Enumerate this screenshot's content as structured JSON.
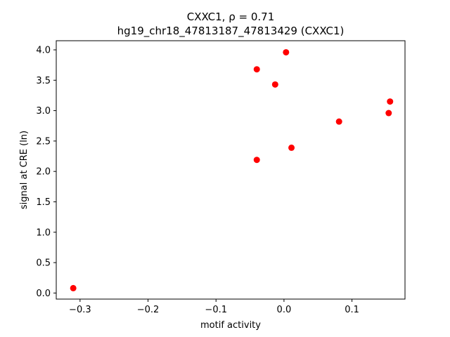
{
  "chart_data": {
    "type": "scatter",
    "title": "CXXC1, ρ = 0.71",
    "subtitle": "hg19_chr18_47813187_47813429 (CXXC1)",
    "xlabel": "motif activity",
    "ylabel": "signal at CRE (ln)",
    "xlim": [
      -0.335,
      0.178
    ],
    "ylim": [
      -0.1,
      4.15
    ],
    "x_ticks": [
      -0.3,
      -0.2,
      -0.1,
      0.0,
      0.1
    ],
    "x_tick_labels": [
      "−0.3",
      "−0.2",
      "−0.1",
      "0.0",
      "0.1"
    ],
    "y_ticks": [
      0.0,
      0.5,
      1.0,
      1.5,
      2.0,
      2.5,
      3.0,
      3.5,
      4.0
    ],
    "y_tick_labels": [
      "0.0",
      "0.5",
      "1.0",
      "1.5",
      "2.0",
      "2.5",
      "3.0",
      "3.5",
      "4.0"
    ],
    "grid": false,
    "marker_color": "#ff0000",
    "points": [
      {
        "x": -0.31,
        "y": 0.08
      },
      {
        "x": -0.04,
        "y": 2.19
      },
      {
        "x": -0.04,
        "y": 3.68
      },
      {
        "x": -0.013,
        "y": 3.43
      },
      {
        "x": 0.003,
        "y": 3.96
      },
      {
        "x": 0.011,
        "y": 2.39
      },
      {
        "x": 0.081,
        "y": 2.82
      },
      {
        "x": 0.154,
        "y": 2.96
      },
      {
        "x": 0.156,
        "y": 3.15
      }
    ]
  }
}
